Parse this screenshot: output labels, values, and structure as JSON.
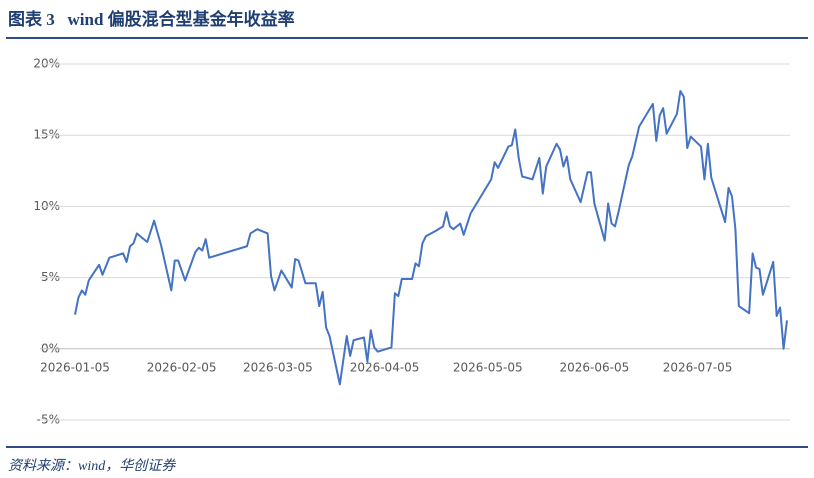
{
  "chart_data": {
    "type": "line",
    "title": "图表 3   wind 偏股混合型基金年收益率",
    "source": "资料来源：wind，华创证券",
    "x": [
      "2026-01-05",
      "2026-01-06",
      "2026-01-07",
      "2026-01-08",
      "2026-01-09",
      "2026-01-12",
      "2026-01-13",
      "2026-01-15",
      "2026-01-19",
      "2026-01-20",
      "2026-01-21",
      "2026-01-22",
      "2026-01-23",
      "2026-01-26",
      "2026-01-28",
      "2026-01-30",
      "2026-02-02",
      "2026-02-03",
      "2026-02-04",
      "2026-02-06",
      "2026-02-09",
      "2026-02-10",
      "2026-02-11",
      "2026-02-12",
      "2026-02-13",
      "2026-02-24",
      "2026-02-25",
      "2026-02-27",
      "2026-03-02",
      "2026-03-03",
      "2026-03-04",
      "2026-03-06",
      "2026-03-09",
      "2026-03-10",
      "2026-03-11",
      "2026-03-13",
      "2026-03-16",
      "2026-03-17",
      "2026-03-18",
      "2026-03-19",
      "2026-03-20",
      "2026-03-23",
      "2026-03-25",
      "2026-03-26",
      "2026-03-27",
      "2026-03-30",
      "2026-03-31",
      "2026-04-01",
      "2026-04-02",
      "2026-04-03",
      "2026-04-07",
      "2026-04-08",
      "2026-04-09",
      "2026-04-10",
      "2026-04-13",
      "2026-04-14",
      "2026-04-15",
      "2026-04-16",
      "2026-04-17",
      "2026-04-20",
      "2026-04-22",
      "2026-04-23",
      "2026-04-24",
      "2026-04-25",
      "2026-04-27",
      "2026-04-28",
      "2026-04-30",
      "2026-05-06",
      "2026-05-07",
      "2026-05-08",
      "2026-05-11",
      "2026-05-12",
      "2026-05-13",
      "2026-05-14",
      "2026-05-15",
      "2026-05-18",
      "2026-05-20",
      "2026-05-21",
      "2026-05-22",
      "2026-05-25",
      "2026-05-26",
      "2026-05-27",
      "2026-05-28",
      "2026-05-29",
      "2026-06-01",
      "2026-06-03",
      "2026-06-04",
      "2026-06-05",
      "2026-06-08",
      "2026-06-09",
      "2026-06-10",
      "2026-06-11",
      "2026-06-12",
      "2026-06-15",
      "2026-06-16",
      "2026-06-18",
      "2026-06-22",
      "2026-06-23",
      "2026-06-24",
      "2026-06-25",
      "2026-06-26",
      "2026-06-29",
      "2026-06-30",
      "2026-07-01",
      "2026-07-02",
      "2026-07-03",
      "2026-07-06",
      "2026-07-07",
      "2026-07-08",
      "2026-07-09",
      "2026-07-13",
      "2026-07-14",
      "2026-07-15",
      "2026-07-16",
      "2026-07-17",
      "2026-07-20",
      "2026-07-21",
      "2026-07-22",
      "2026-07-23",
      "2026-07-24",
      "2026-07-27",
      "2026-07-28",
      "2026-07-29",
      "2026-07-30",
      "2026-07-31"
    ],
    "series": [
      {
        "color": "#4472c4",
        "values": [
          2.4,
          3.6,
          4.1,
          3.8,
          4.8,
          5.9,
          5.2,
          6.4,
          6.7,
          6.1,
          7.2,
          7.4,
          8.1,
          7.5,
          9.0,
          7.3,
          4.1,
          6.2,
          6.2,
          4.8,
          6.8,
          7.1,
          6.9,
          7.7,
          6.4,
          7.2,
          8.1,
          8.4,
          8.1,
          5.1,
          4.1,
          5.5,
          4.3,
          6.3,
          6.2,
          4.6,
          4.6,
          3.0,
          4.0,
          1.5,
          0.9,
          -2.5,
          0.9,
          -0.5,
          0.6,
          0.8,
          -0.9,
          1.3,
          0.1,
          -0.2,
          0.1,
          3.9,
          3.7,
          4.9,
          4.9,
          6.0,
          5.8,
          7.4,
          7.9,
          8.3,
          8.6,
          9.6,
          8.6,
          8.4,
          8.8,
          8.0,
          9.5,
          11.9,
          13.1,
          12.7,
          14.2,
          14.3,
          15.4,
          13.4,
          12.1,
          11.9,
          13.4,
          10.9,
          12.8,
          14.4,
          14.0,
          12.8,
          13.5,
          11.9,
          10.3,
          12.4,
          12.4,
          10.2,
          7.6,
          10.2,
          8.8,
          8.6,
          9.6,
          12.9,
          13.5,
          15.6,
          17.2,
          14.6,
          16.4,
          16.9,
          15.1,
          16.5,
          18.1,
          17.7,
          14.1,
          14.9,
          14.2,
          11.9,
          14.4,
          12.0,
          8.9,
          11.3,
          10.7,
          8.4,
          3.0,
          2.5,
          6.7,
          5.7,
          5.6,
          3.8,
          6.1,
          2.3,
          2.9,
          0.0,
          2.0
        ]
      }
    ],
    "xlim": [
      "2026-01-05",
      "2026-07-31"
    ],
    "xticks": [
      "2026-01-05",
      "2026-02-05",
      "2026-03-05",
      "2026-04-05",
      "2026-05-05",
      "2026-06-05",
      "2026-07-05"
    ],
    "ylim": [
      -5,
      20
    ],
    "yticks": [
      {
        "value": -5,
        "label": "-5%"
      },
      {
        "value": 0,
        "label": "0%"
      },
      {
        "value": 5,
        "label": "5%"
      },
      {
        "value": 10,
        "label": "10%"
      },
      {
        "value": 15,
        "label": "15%"
      },
      {
        "value": 20,
        "label": "20%"
      }
    ],
    "grid": true
  }
}
